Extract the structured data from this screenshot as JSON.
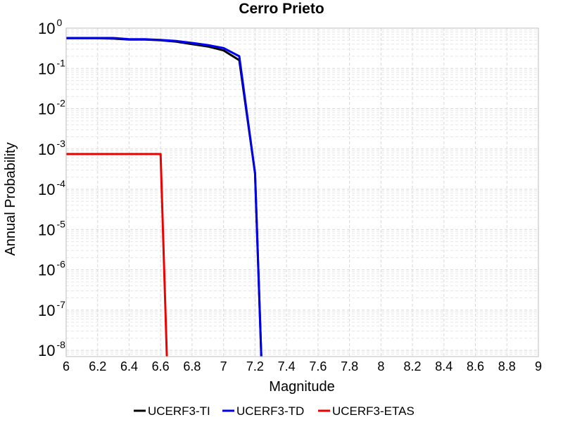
{
  "chart_data": {
    "type": "line",
    "title": "Cerro Prieto",
    "xlabel": "Magnitude",
    "ylabel": "Annual Probability",
    "xlim": [
      6,
      9
    ],
    "ylim": [
      7e-09,
      1
    ],
    "yscale": "log",
    "grid": true,
    "legend_position": "bottom",
    "x_ticks": [
      "6",
      "6.2",
      "6.4",
      "6.6",
      "6.8",
      "7",
      "7.2",
      "7.4",
      "7.6",
      "7.8",
      "8",
      "8.2",
      "8.4",
      "8.6",
      "8.8",
      "9"
    ],
    "y_ticks": [
      {
        "base": "10",
        "exp": "0"
      },
      {
        "base": "10",
        "exp": "-1"
      },
      {
        "base": "10",
        "exp": "-2"
      },
      {
        "base": "10",
        "exp": "-3"
      },
      {
        "base": "10",
        "exp": "-4"
      },
      {
        "base": "10",
        "exp": "-5"
      },
      {
        "base": "10",
        "exp": "-6"
      },
      {
        "base": "10",
        "exp": "-7"
      },
      {
        "base": "10",
        "exp": "-8"
      }
    ],
    "series": [
      {
        "name": "UCERF3-TI",
        "color": "#000000",
        "x": [
          6.0,
          6.1,
          6.2,
          6.3,
          6.4,
          6.5,
          6.6,
          6.7,
          6.8,
          6.9,
          7.0,
          7.1,
          7.2,
          7.24
        ],
        "y": [
          0.56,
          0.56,
          0.56,
          0.55,
          0.52,
          0.52,
          0.5,
          0.46,
          0.4,
          0.35,
          0.28,
          0.16,
          0.00025,
          7e-09
        ]
      },
      {
        "name": "UCERF3-TD",
        "color": "#0000ee",
        "x": [
          6.0,
          6.1,
          6.2,
          6.3,
          6.4,
          6.5,
          6.6,
          6.7,
          6.8,
          6.9,
          7.0,
          7.1,
          7.2,
          7.24
        ],
        "y": [
          0.57,
          0.57,
          0.57,
          0.57,
          0.53,
          0.53,
          0.51,
          0.48,
          0.43,
          0.38,
          0.32,
          0.2,
          0.00025,
          7e-09
        ]
      },
      {
        "name": "UCERF3-ETAS",
        "color": "#ee0000",
        "x": [
          6.0,
          6.1,
          6.2,
          6.3,
          6.4,
          6.5,
          6.6,
          6.64
        ],
        "y": [
          0.00075,
          0.00075,
          0.00075,
          0.00075,
          0.00075,
          0.00075,
          0.00075,
          7e-09
        ]
      }
    ]
  }
}
